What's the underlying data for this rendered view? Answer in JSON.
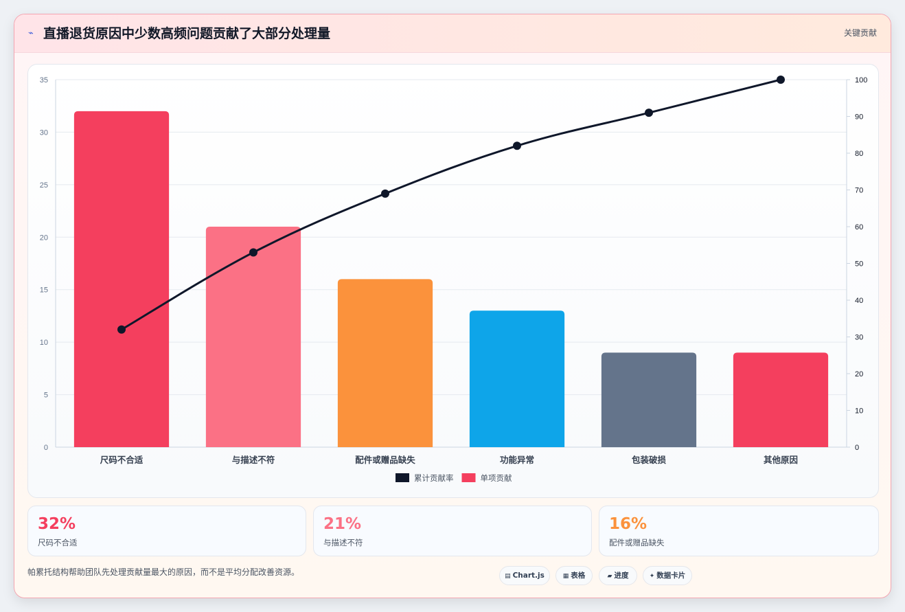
{
  "header": {
    "icon": "lightning-icon",
    "title": "直播退货原因中少数高频问题贡献了大部分处理量",
    "badge": "关键贡献"
  },
  "chart_data": {
    "type": "bar",
    "categories": [
      "尺码不合适",
      "与描述不符",
      "配件或赠品缺失",
      "功能异常",
      "包装破损",
      "其他原因"
    ],
    "series": [
      {
        "name": "单项贡献",
        "type": "bar",
        "axis": "left",
        "values": [
          32,
          21,
          16,
          13,
          9,
          9
        ]
      },
      {
        "name": "累计贡献率",
        "type": "line",
        "axis": "right",
        "values": [
          32,
          53,
          69,
          82,
          91,
          100
        ]
      }
    ],
    "bar_colors": [
      "#f43f5e",
      "#fb7185",
      "#fb923c",
      "#0ea5e9",
      "#64748b",
      "#f43f5e"
    ],
    "line_color": "#0f172a",
    "y_left": {
      "min": 0,
      "max": 35,
      "ticks": [
        "0",
        "5",
        "10",
        "15",
        "20",
        "25",
        "30",
        "35"
      ]
    },
    "y_right": {
      "min": 0,
      "max": 100,
      "ticks": [
        "0",
        "10",
        "20",
        "30",
        "40",
        "50",
        "60",
        "70",
        "80",
        "90",
        "100"
      ]
    },
    "grid": true,
    "legend_position": "bottom",
    "legend": [
      {
        "label": "累计贡献率",
        "color": "#0f172a"
      },
      {
        "label": "单项贡献",
        "color": "#f43f5e"
      }
    ]
  },
  "stats": [
    {
      "value": "32%",
      "label": "尺码不合适",
      "color": "#f43f5e"
    },
    {
      "value": "21%",
      "label": "与描述不符",
      "color": "#fb7185"
    },
    {
      "value": "16%",
      "label": "配件或赠品缺失",
      "color": "#fb923c"
    }
  ],
  "footer": {
    "note": "帕累托结构帮助团队先处理贡献量最大的原因，而不是平均分配改善资源。",
    "tags": [
      {
        "icon": "chart-icon",
        "glyph": "▤",
        "label": "Chart.js"
      },
      {
        "icon": "table-icon",
        "glyph": "▦",
        "label": "表格"
      },
      {
        "icon": "progress-icon",
        "glyph": "▰",
        "label": "进度"
      },
      {
        "icon": "sparkle-icon",
        "glyph": "✦",
        "label": "数据卡片"
      }
    ]
  }
}
